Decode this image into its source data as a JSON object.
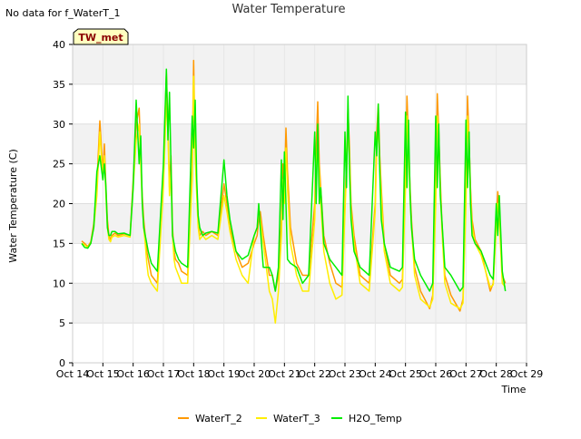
{
  "chart_data": {
    "type": "line",
    "title": "Water Temperature",
    "no_data_note": "No data for f_WaterT_1",
    "site_label": "TW_met",
    "xlabel": "Time",
    "ylabel": "Water Temperature (C)",
    "ylim": [
      0,
      40
    ],
    "yticks": [
      0,
      5,
      10,
      15,
      20,
      25,
      30,
      35,
      40
    ],
    "xlim": [
      14,
      29
    ],
    "xtick_values": [
      14,
      15,
      16,
      17,
      18,
      19,
      20,
      21,
      22,
      23,
      24,
      25,
      26,
      27,
      28,
      29
    ],
    "xtick_labels": [
      "Oct 14",
      "Oct 15",
      "Oct 16",
      "Oct 17",
      "Oct 18",
      "Oct 19",
      "Oct 20",
      "Oct 21",
      "Oct 22",
      "Oct 23",
      "Oct 24",
      "Oct 25",
      "Oct 26",
      "Oct 27",
      "Oct 28",
      "Oct 29"
    ],
    "x_units": "day of October",
    "grid": true,
    "background_bands": true,
    "legend_position": "bottom",
    "series": [
      {
        "name": "WaterT_2",
        "color": "#ff9900",
        "x": [
          14.3,
          14.4,
          14.5,
          14.6,
          14.7,
          14.8,
          14.9,
          15.0,
          15.05,
          15.1,
          15.15,
          15.2,
          15.25,
          15.3,
          15.4,
          15.5,
          15.7,
          15.9,
          16.0,
          16.1,
          16.2,
          16.25,
          16.3,
          16.35,
          16.4,
          16.45,
          16.5,
          16.6,
          16.8,
          17.0,
          17.1,
          17.15,
          17.2,
          17.25,
          17.3,
          17.35,
          17.4,
          17.5,
          17.6,
          17.8,
          17.95,
          18.0,
          18.05,
          18.1,
          18.15,
          18.2,
          18.3,
          18.4,
          18.6,
          18.8,
          19.0,
          19.1,
          19.2,
          19.4,
          19.6,
          19.8,
          20.0,
          20.1,
          20.15,
          20.2,
          20.3,
          20.5,
          20.6,
          20.7,
          20.8,
          20.9,
          20.95,
          21.0,
          21.05,
          21.1,
          21.2,
          21.4,
          21.6,
          21.8,
          22.0,
          22.05,
          22.1,
          22.15,
          22.2,
          22.3,
          22.5,
          22.7,
          22.9,
          23.0,
          23.05,
          23.1,
          23.15,
          23.2,
          23.3,
          23.5,
          23.8,
          24.0,
          24.05,
          24.1,
          24.15,
          24.2,
          24.3,
          24.5,
          24.8,
          24.9,
          25.0,
          25.05,
          25.1,
          25.15,
          25.2,
          25.3,
          25.5,
          25.8,
          25.9,
          26.0,
          26.05,
          26.1,
          26.15,
          26.2,
          26.3,
          26.5,
          26.8,
          26.9,
          27.0,
          27.05,
          27.1,
          27.15,
          27.2,
          27.3,
          27.5,
          27.8,
          27.9,
          28.0,
          28.05,
          28.1,
          28.2,
          28.3
        ],
        "values": [
          15.3,
          15.0,
          14.6,
          15.2,
          17.5,
          22.5,
          30.4,
          24.0,
          27.5,
          22.0,
          18.0,
          16.0,
          15.5,
          16.0,
          16.3,
          16.0,
          16.2,
          16.0,
          23.0,
          30.0,
          32.0,
          26.0,
          21.0,
          18.0,
          16.0,
          14.0,
          13.0,
          11.0,
          10.0,
          24.0,
          36.4,
          30.0,
          22.0,
          26.0,
          17.0,
          14.0,
          13.0,
          12.5,
          11.5,
          11.0,
          25.0,
          38.0,
          27.0,
          22.0,
          18.0,
          16.0,
          16.5,
          16.0,
          16.5,
          16.0,
          22.5,
          20.0,
          17.0,
          14.0,
          12.0,
          12.5,
          15.0,
          16.0,
          18.0,
          19.0,
          16.0,
          11.0,
          11.0,
          9.0,
          11.0,
          18.0,
          25.0,
          22.0,
          29.5,
          24.0,
          17.0,
          12.5,
          11.0,
          11.0,
          20.0,
          27.0,
          32.8,
          25.0,
          22.0,
          16.0,
          12.5,
          10.0,
          9.5,
          20.0,
          25.0,
          32.0,
          27.0,
          20.0,
          16.0,
          11.0,
          10.0,
          20.0,
          29.0,
          32.5,
          26.0,
          22.0,
          15.0,
          11.0,
          10.0,
          10.5,
          24.0,
          33.5,
          28.0,
          22.0,
          18.0,
          12.0,
          9.0,
          6.8,
          8.5,
          22.0,
          33.8,
          29.0,
          23.0,
          18.0,
          11.0,
          8.5,
          6.5,
          8.0,
          22.0,
          33.5,
          28.0,
          22.0,
          18.0,
          15.5,
          14.0,
          9.0,
          10.0,
          18.0,
          21.5,
          19.0,
          11.0,
          10.0
        ]
      },
      {
        "name": "WaterT_3",
        "color": "#ffee00",
        "x": [
          14.3,
          14.4,
          14.5,
          14.6,
          14.7,
          14.8,
          14.9,
          15.0,
          15.05,
          15.1,
          15.15,
          15.2,
          15.25,
          15.3,
          15.4,
          15.5,
          15.7,
          15.9,
          16.0,
          16.1,
          16.2,
          16.25,
          16.3,
          16.35,
          16.4,
          16.45,
          16.5,
          16.6,
          16.8,
          17.0,
          17.1,
          17.15,
          17.2,
          17.25,
          17.3,
          17.35,
          17.4,
          17.5,
          17.6,
          17.8,
          17.95,
          18.0,
          18.05,
          18.1,
          18.15,
          18.2,
          18.3,
          18.4,
          18.6,
          18.8,
          19.0,
          19.1,
          19.2,
          19.4,
          19.6,
          19.8,
          20.0,
          20.1,
          20.15,
          20.2,
          20.3,
          20.5,
          20.6,
          20.7,
          20.8,
          20.9,
          20.95,
          21.0,
          21.05,
          21.1,
          21.2,
          21.4,
          21.6,
          21.8,
          22.0,
          22.05,
          22.1,
          22.15,
          22.2,
          22.3,
          22.5,
          22.7,
          22.9,
          23.0,
          23.05,
          23.1,
          23.15,
          23.2,
          23.3,
          23.5,
          23.8,
          24.0,
          24.05,
          24.1,
          24.15,
          24.2,
          24.3,
          24.5,
          24.8,
          24.9,
          25.0,
          25.05,
          25.1,
          25.15,
          25.2,
          25.3,
          25.5,
          25.8,
          25.9,
          26.0,
          26.05,
          26.1,
          26.15,
          26.2,
          26.3,
          26.5,
          26.8,
          26.9,
          27.0,
          27.05,
          27.1,
          27.15,
          27.2,
          27.3,
          27.5,
          27.8,
          27.9,
          28.0,
          28.05,
          28.1,
          28.2,
          28.3
        ],
        "values": [
          15.0,
          14.8,
          14.5,
          15.0,
          17.0,
          21.0,
          29.0,
          23.0,
          26.0,
          21.0,
          17.0,
          15.5,
          15.2,
          15.8,
          16.0,
          15.8,
          16.0,
          15.8,
          22.0,
          28.0,
          30.0,
          25.0,
          20.0,
          17.0,
          15.0,
          12.5,
          11.0,
          10.0,
          9.0,
          22.0,
          33.0,
          29.0,
          21.0,
          24.0,
          16.0,
          13.0,
          12.0,
          11.0,
          10.0,
          10.0,
          23.0,
          36.0,
          26.0,
          21.0,
          17.0,
          15.5,
          16.0,
          15.5,
          16.0,
          15.5,
          21.0,
          19.0,
          16.5,
          13.0,
          11.0,
          10.0,
          16.0,
          17.0,
          19.0,
          18.0,
          15.0,
          9.0,
          8.0,
          5.0,
          9.0,
          16.0,
          23.0,
          20.0,
          27.0,
          22.0,
          15.0,
          11.0,
          9.0,
          9.0,
          18.0,
          25.0,
          28.0,
          24.0,
          20.0,
          14.0,
          10.0,
          8.0,
          8.5,
          19.0,
          24.0,
          30.0,
          26.0,
          19.0,
          15.0,
          10.0,
          9.0,
          19.0,
          27.0,
          30.0,
          25.0,
          21.0,
          14.0,
          10.0,
          9.0,
          9.5,
          22.0,
          31.0,
          27.0,
          21.0,
          17.0,
          11.0,
          8.0,
          7.0,
          8.0,
          20.0,
          31.0,
          28.0,
          22.0,
          17.0,
          10.0,
          7.5,
          6.8,
          7.5,
          20.0,
          31.0,
          27.0,
          21.0,
          17.0,
          15.0,
          13.5,
          9.5,
          9.8,
          17.0,
          20.0,
          18.0,
          10.0,
          9.5
        ]
      },
      {
        "name": "H2O_Temp",
        "color": "#00ee00",
        "x": [
          14.3,
          14.4,
          14.5,
          14.6,
          14.7,
          14.8,
          14.9,
          15.0,
          15.05,
          15.1,
          15.15,
          15.2,
          15.25,
          15.3,
          15.4,
          15.5,
          15.7,
          15.9,
          16.0,
          16.1,
          16.2,
          16.25,
          16.3,
          16.35,
          16.4,
          16.45,
          16.5,
          16.6,
          16.8,
          17.0,
          17.1,
          17.15,
          17.2,
          17.25,
          17.3,
          17.35,
          17.4,
          17.5,
          17.6,
          17.8,
          17.95,
          18.0,
          18.05,
          18.1,
          18.15,
          18.2,
          18.3,
          18.4,
          18.6,
          18.8,
          19.0,
          19.1,
          19.2,
          19.4,
          19.6,
          19.8,
          20.0,
          20.1,
          20.15,
          20.2,
          20.3,
          20.5,
          20.6,
          20.7,
          20.8,
          20.9,
          20.95,
          21.0,
          21.05,
          21.1,
          21.2,
          21.4,
          21.6,
          21.8,
          22.0,
          22.05,
          22.1,
          22.15,
          22.2,
          22.3,
          22.5,
          22.7,
          22.9,
          23.0,
          23.05,
          23.1,
          23.15,
          23.2,
          23.3,
          23.5,
          23.8,
          24.0,
          24.05,
          24.1,
          24.15,
          24.2,
          24.3,
          24.5,
          24.8,
          24.9,
          25.0,
          25.05,
          25.1,
          25.15,
          25.2,
          25.3,
          25.5,
          25.8,
          25.9,
          26.0,
          26.05,
          26.1,
          26.15,
          26.2,
          26.3,
          26.5,
          26.8,
          26.9,
          27.0,
          27.05,
          27.1,
          27.15,
          27.2,
          27.3,
          27.5,
          27.8,
          27.9,
          28.0,
          28.05,
          28.1,
          28.2,
          28.3
        ],
        "values": [
          15.0,
          14.5,
          14.4,
          15.0,
          17.0,
          24.0,
          26.0,
          23.0,
          25.0,
          22.0,
          17.0,
          16.0,
          16.0,
          16.5,
          16.5,
          16.2,
          16.3,
          16.0,
          22.0,
          33.0,
          25.0,
          28.5,
          20.0,
          17.0,
          16.0,
          15.0,
          14.0,
          12.5,
          11.5,
          25.0,
          36.9,
          28.0,
          34.0,
          25.0,
          16.0,
          15.0,
          14.0,
          13.0,
          12.5,
          12.0,
          31.0,
          27.0,
          33.0,
          23.0,
          18.5,
          17.0,
          16.0,
          16.3,
          16.5,
          16.3,
          25.5,
          21.0,
          18.0,
          14.0,
          13.0,
          13.5,
          16.0,
          17.0,
          20.0,
          17.0,
          12.0,
          12.0,
          11.0,
          9.0,
          12.0,
          25.5,
          18.0,
          26.5,
          20.0,
          13.0,
          12.5,
          12.0,
          10.0,
          11.0,
          29.0,
          20.0,
          30.0,
          20.0,
          22.0,
          15.0,
          13.0,
          12.0,
          11.0,
          29.0,
          22.0,
          33.5,
          24.0,
          18.0,
          14.0,
          12.0,
          11.0,
          29.0,
          26.0,
          32.5,
          24.0,
          18.0,
          15.0,
          12.0,
          11.5,
          12.0,
          31.5,
          22.0,
          30.5,
          21.0,
          17.0,
          13.0,
          11.0,
          9.0,
          10.0,
          31.0,
          22.0,
          30.0,
          21.0,
          18.0,
          12.0,
          11.0,
          9.0,
          9.5,
          30.5,
          22.0,
          29.0,
          20.0,
          16.0,
          15.0,
          14.0,
          11.0,
          10.5,
          20.0,
          16.0,
          21.0,
          11.5,
          9.0
        ]
      }
    ]
  }
}
